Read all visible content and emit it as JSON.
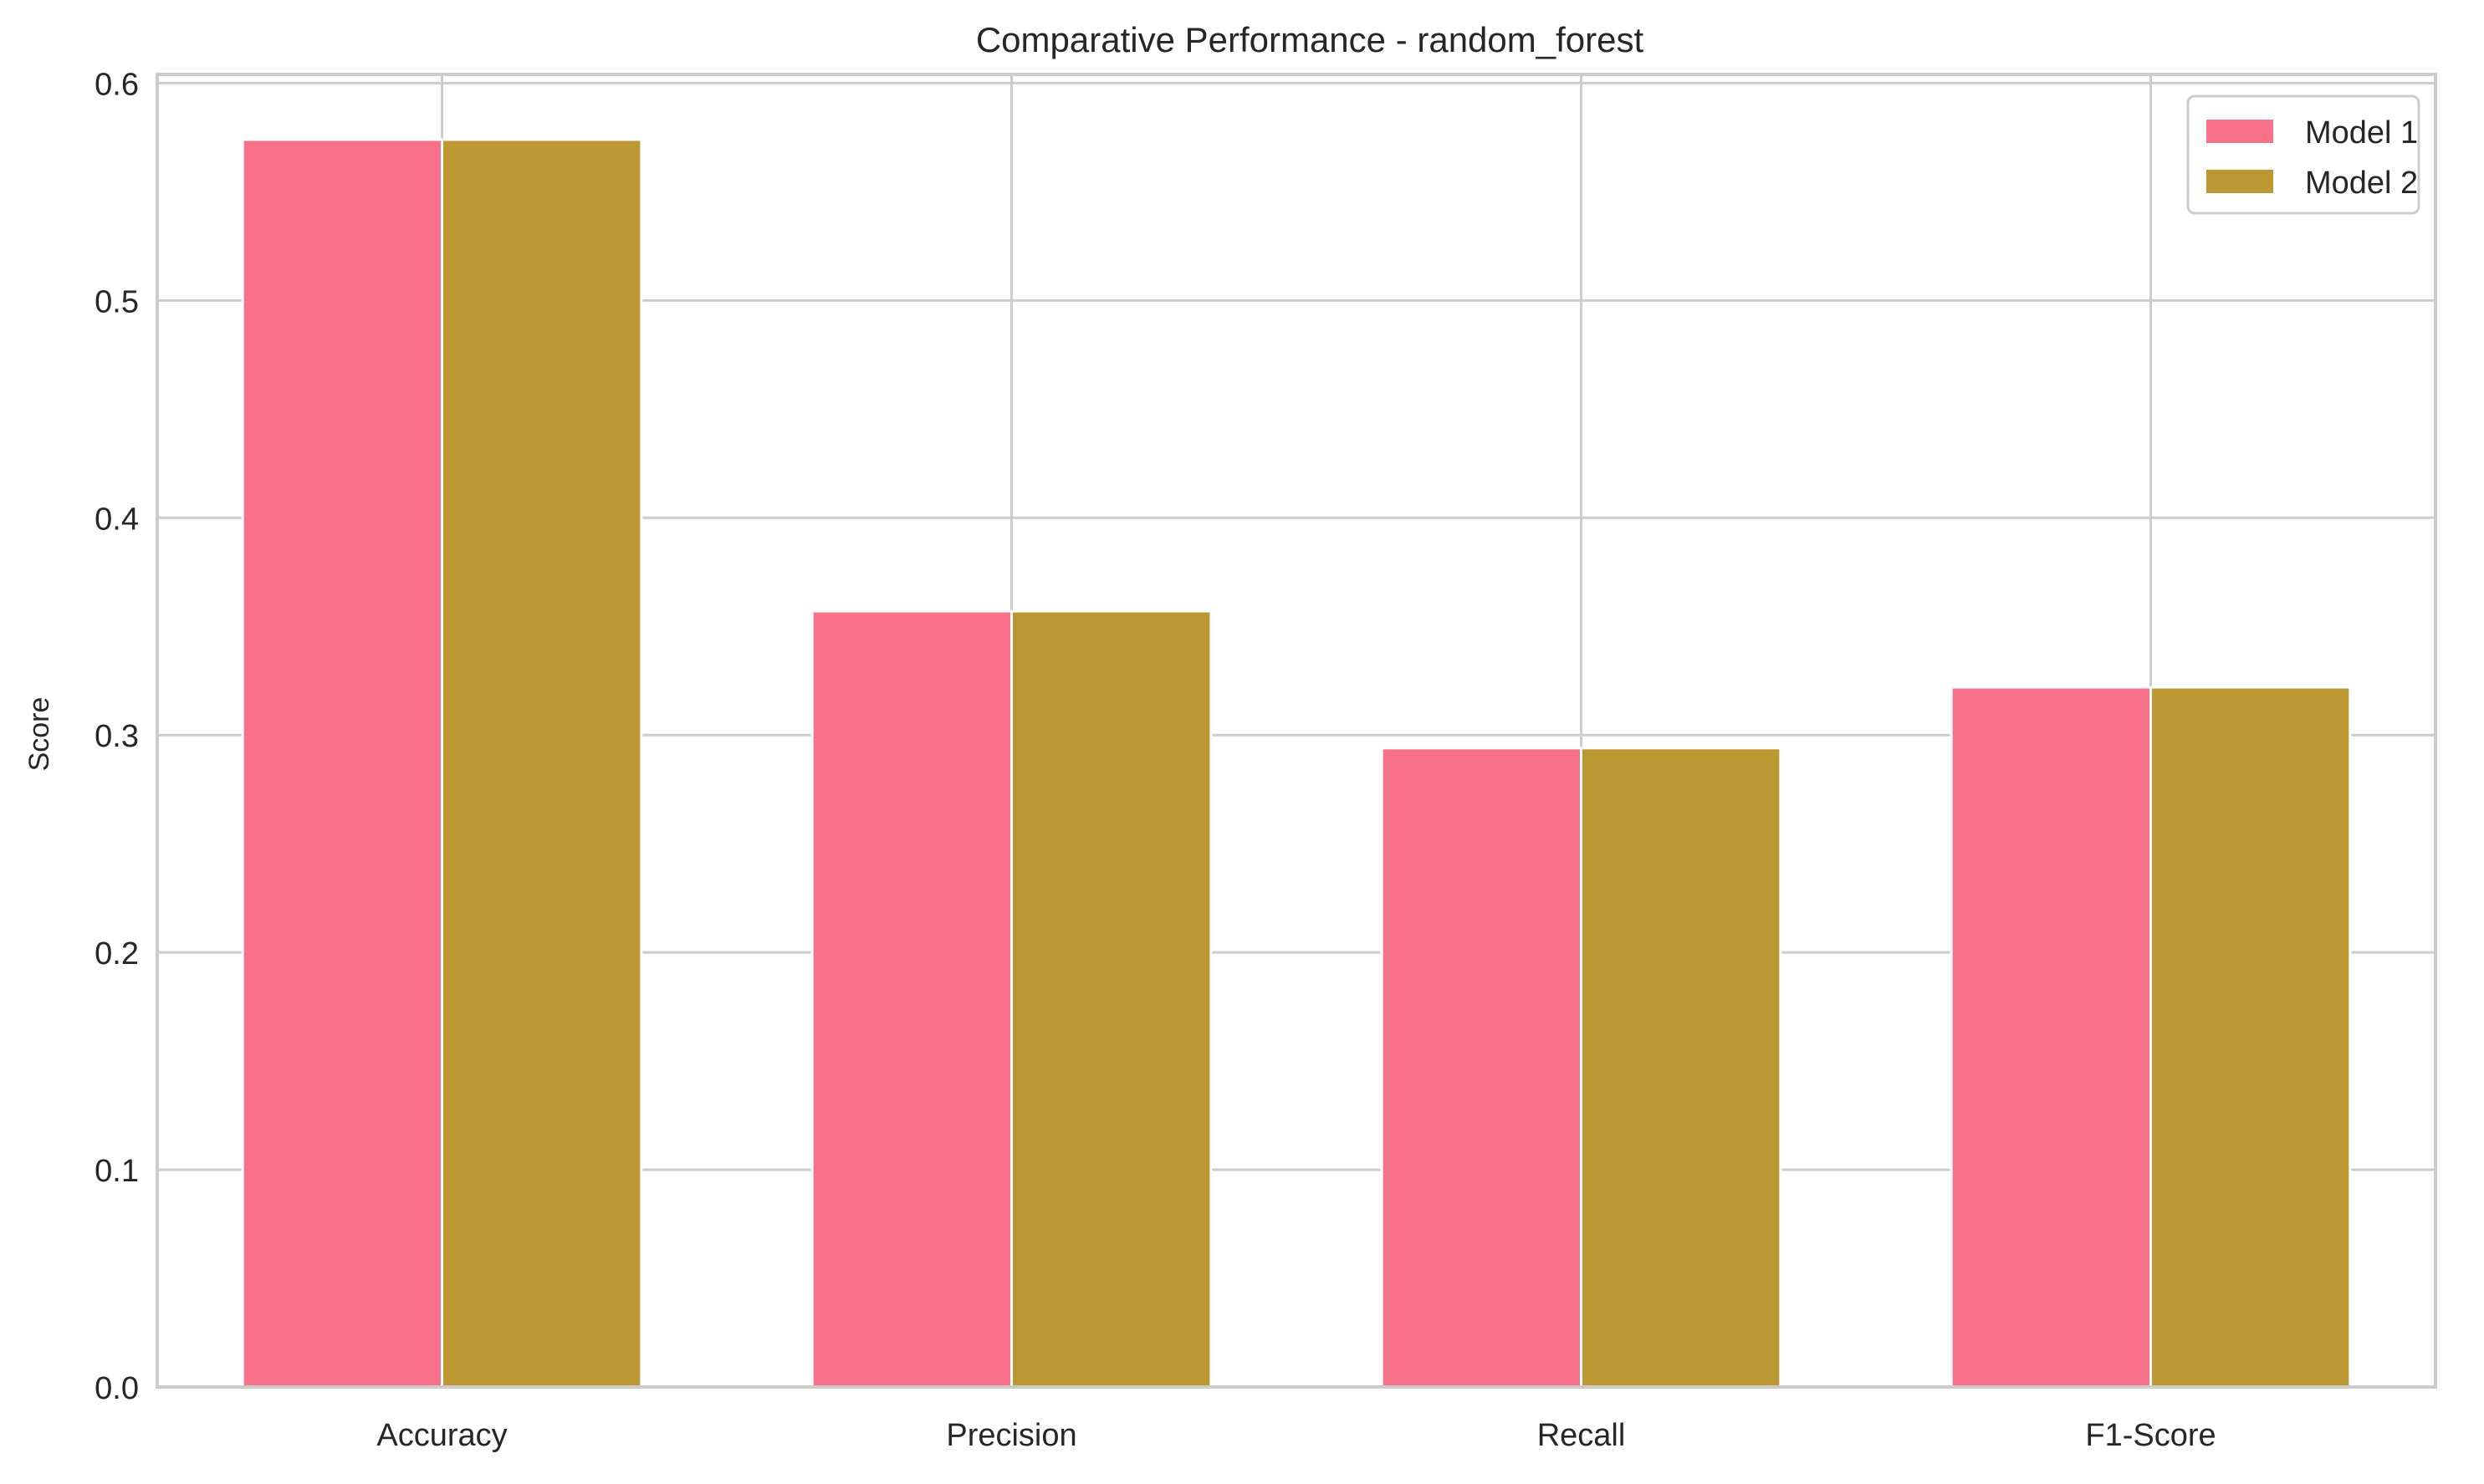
{
  "chart_data": {
    "type": "bar",
    "title": "Comparative Performance - random_forest",
    "xlabel": "",
    "ylabel": "Score",
    "categories": [
      "Accuracy",
      "Precision",
      "Recall",
      "F1-Score"
    ],
    "series": [
      {
        "name": "Model 1",
        "color": "#f77189",
        "values": [
          0.574,
          0.357,
          0.294,
          0.322
        ]
      },
      {
        "name": "Model 2",
        "color": "#bb9832",
        "values": [
          0.574,
          0.357,
          0.294,
          0.322
        ]
      }
    ],
    "ylim": [
      0,
      0.604
    ],
    "yticks": [
      0.0,
      0.1,
      0.2,
      0.3,
      0.4,
      0.5,
      0.6
    ],
    "ytick_labels": [
      "0.0",
      "0.1",
      "0.2",
      "0.3",
      "0.4",
      "0.5",
      "0.6"
    ],
    "grid": true,
    "legend_position": "top-right",
    "colors": {
      "grid": "#cccccc",
      "spine": "#cccccc",
      "text": "#262626"
    }
  }
}
